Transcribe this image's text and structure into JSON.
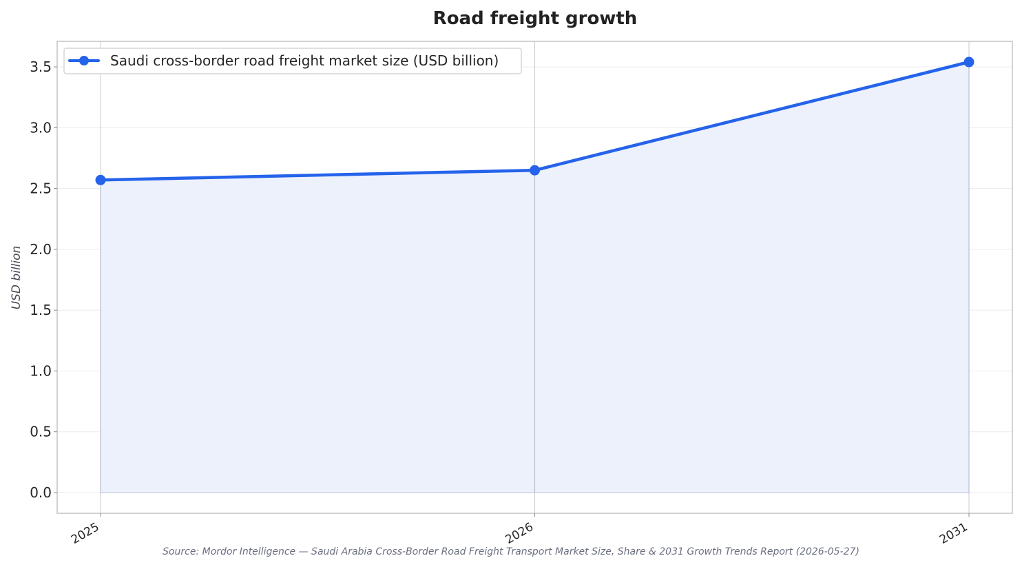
{
  "chart_data": {
    "type": "area",
    "title": "Road freight growth",
    "xlabel": "",
    "ylabel": "USD billion",
    "categories": [
      "2025",
      "2026",
      "2031"
    ],
    "series": [
      {
        "name": "Saudi cross-border road freight market size (USD billion)",
        "values": [
          2.57,
          2.65,
          3.54
        ]
      }
    ],
    "ylim": [
      -0.17,
      3.71
    ],
    "yticks": [
      0.0,
      0.5,
      1.0,
      1.5,
      2.0,
      2.5,
      3.0,
      3.5
    ],
    "ytick_labels": [
      "0.0",
      "0.5",
      "1.0",
      "1.5",
      "2.0",
      "2.5",
      "3.0",
      "3.5"
    ],
    "grid": true,
    "legend_position": "top-left",
    "source": "Source: Mordor Intelligence — Saudi Arabia Cross-Border Road Freight Transport Market Size, Share & 2031 Growth Trends Report (2026-05-27)",
    "colors": {
      "line": "#2563eb",
      "fill": "#ecf1fc",
      "grid": "#ebebeb",
      "frame": "#c4c4c4"
    }
  }
}
